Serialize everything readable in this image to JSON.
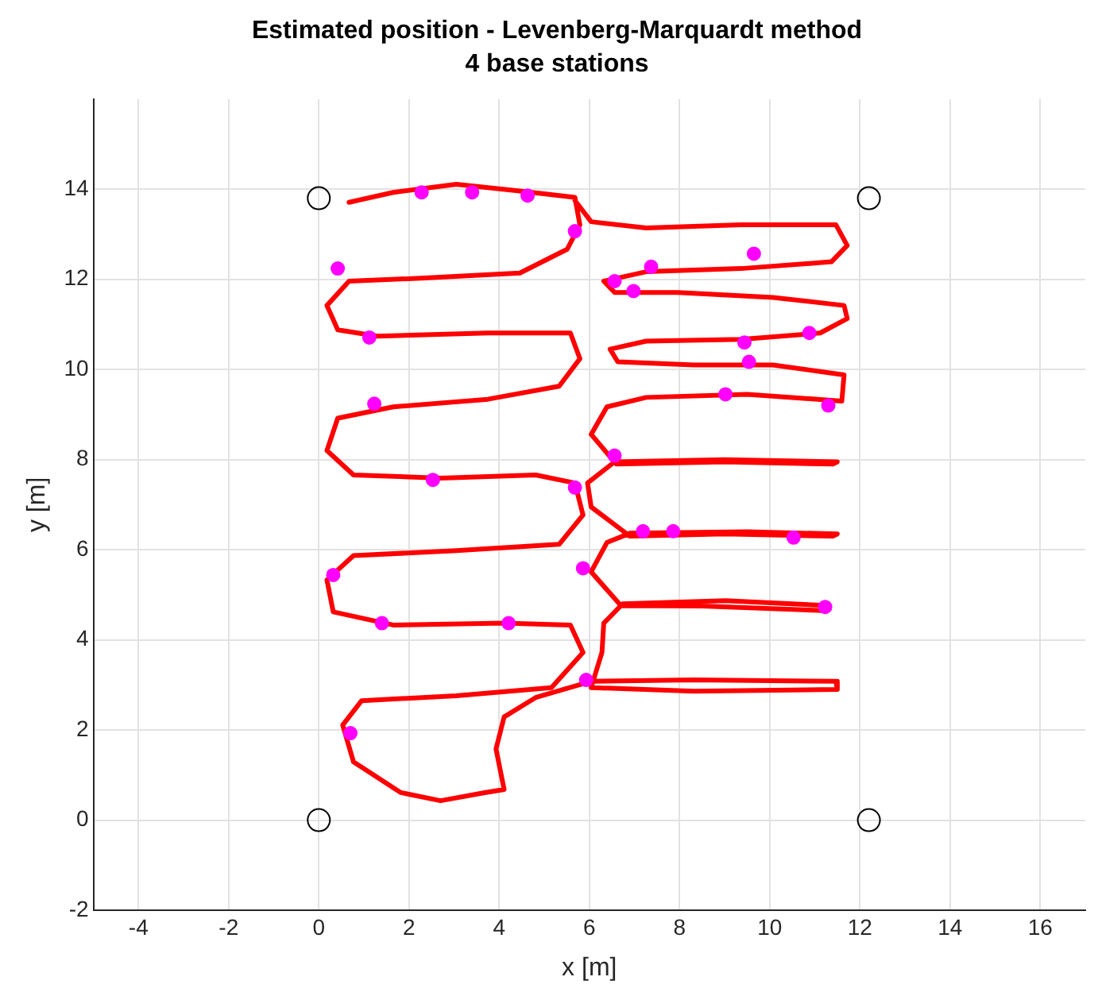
{
  "chart_data": {
    "type": "scatter",
    "title": "Estimated position - Levenberg-Marquardt method",
    "subtitle": "4 base stations",
    "xlabel": "x [m]",
    "ylabel": "y [m]",
    "xlim": [
      -5,
      17
    ],
    "ylim": [
      -2,
      16
    ],
    "xticks": [
      -4,
      -2,
      0,
      2,
      4,
      6,
      8,
      10,
      12,
      14,
      16
    ],
    "yticks": [
      -2,
      0,
      2,
      4,
      6,
      8,
      10,
      12,
      14
    ],
    "grid": true,
    "legend": false,
    "series": [
      {
        "type": "line",
        "color": "#ff0000",
        "marker": "none",
        "line_style": "solid",
        "x": [
          0.67,
          1.65,
          3.05,
          4.46,
          5.68,
          5.79,
          5.51,
          4.46,
          2.35,
          0.67,
          0.18,
          0.42,
          1.3,
          3.75,
          5.58,
          5.79,
          5.33,
          3.75,
          1.65,
          0.42,
          0.18,
          0.77,
          2.7,
          4.81,
          5.68,
          5.86,
          5.33,
          3.05,
          0.77,
          0.18,
          0.32,
          1.65,
          4.11,
          5.58,
          5.86,
          5.16,
          3.05,
          0.95,
          0.53,
          0.77,
          1.82,
          2.7,
          3.68,
          4.11,
          3.93,
          4.11,
          4.81,
          6.04,
          8.32,
          11.47,
          11.5,
          8.32,
          6.04,
          6.28,
          6.32,
          6.74,
          9.02,
          11.3,
          11.2,
          8.5,
          6.7,
          6.04,
          6.39,
          6.91,
          9.5,
          11.5,
          11.4,
          9,
          6.9,
          6.04,
          5.96,
          6.56,
          9,
          11.5,
          11.4,
          9,
          6.6,
          6.04,
          6.39,
          7.26,
          9.5,
          11.6,
          11.65,
          10.07,
          8.32,
          6.63,
          6.46,
          7.26,
          9.37,
          11.12,
          11.72,
          11.65,
          10.07,
          7.96,
          6.56,
          6.32,
          7.26,
          9.37,
          11.37,
          11.72,
          11.47,
          9.37,
          7.26,
          6.04,
          5.68
        ],
        "values": [
          13.71,
          13.93,
          14.11,
          13.96,
          13.82,
          13.21,
          12.67,
          12.14,
          12.03,
          11.96,
          11.42,
          10.88,
          10.74,
          10.81,
          10.81,
          10.24,
          9.63,
          9.34,
          9.17,
          8.92,
          8.2,
          7.66,
          7.59,
          7.66,
          7.48,
          6.77,
          6.12,
          5.98,
          5.87,
          5.33,
          4.62,
          4.33,
          4.37,
          4.33,
          3.72,
          2.94,
          2.76,
          2.65,
          2.11,
          1.29,
          0.61,
          0.43,
          0.61,
          0.68,
          1.58,
          2.29,
          2.72,
          3.08,
          3.11,
          3.08,
          2.9,
          2.86,
          2.94,
          3.72,
          4.37,
          4.8,
          4.87,
          4.76,
          4.65,
          4.75,
          4.76,
          5.51,
          6.16,
          6.37,
          6.4,
          6.35,
          6.3,
          6.35,
          6.3,
          6.95,
          7.48,
          7.95,
          8,
          7.95,
          7.9,
          7.95,
          7.9,
          8.56,
          9.17,
          9.38,
          9.45,
          9.3,
          9.88,
          10.1,
          10.1,
          10.17,
          10.45,
          10.63,
          10.67,
          10.81,
          11.13,
          11.42,
          11.6,
          11.71,
          11.71,
          11.96,
          12.17,
          12.24,
          12.39,
          12.75,
          13.21,
          13.21,
          13.14,
          13.28,
          13.75
        ]
      },
      {
        "type": "scatter",
        "color": "#ff00ff",
        "marker": "circle",
        "x": [
          2.28,
          3.4,
          4.63,
          5.68,
          0.42,
          1.12,
          1.23,
          2.53,
          5.68,
          9.65,
          7.37,
          6.56,
          6.98,
          10.88,
          9.44,
          9.54,
          9.02,
          11.3,
          6.56,
          0.32,
          1.4,
          4.21,
          5.93,
          0.7,
          5.86,
          7.19,
          7.86,
          11.23,
          10.53
        ],
        "values": [
          13.93,
          13.93,
          13.86,
          13.07,
          12.24,
          10.71,
          9.24,
          7.55,
          7.38,
          12.57,
          12.28,
          11.96,
          11.74,
          10.81,
          10.6,
          10.17,
          9.45,
          9.2,
          8.09,
          5.44,
          4.37,
          4.37,
          3.11,
          1.93,
          5.59,
          6.41,
          6.41,
          4.73,
          6.27
        ]
      },
      {
        "type": "scatter",
        "color": "#000000",
        "marker": "circle",
        "x": [
          0,
          12.2,
          0,
          12.2
        ],
        "values": [
          13.8,
          13.8,
          0,
          0
        ]
      }
    ]
  }
}
